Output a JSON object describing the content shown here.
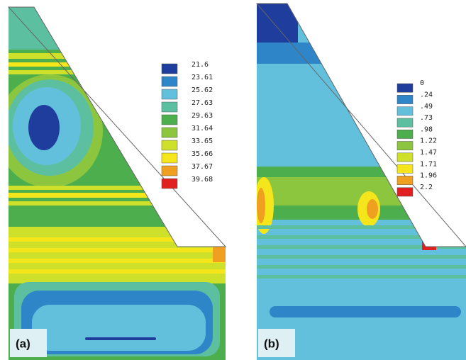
{
  "panels": [
    {
      "label": "(a)",
      "legend": [
        "21.6",
        "23.61",
        "25.62",
        "27.63",
        "29.63",
        "31.64",
        "33.65",
        "35.66",
        "37.67",
        "39.68"
      ]
    },
    {
      "label": "(b)",
      "legend": [
        "0",
        ".24",
        ".49",
        ".73",
        ".98",
        "1.22",
        "1.47",
        "1.71",
        "1.96",
        "2.2"
      ]
    }
  ]
}
